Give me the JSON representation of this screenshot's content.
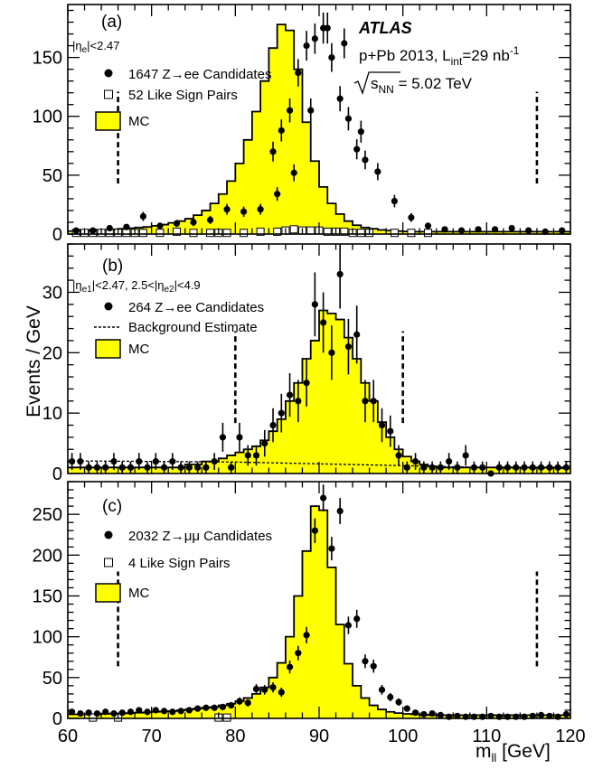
{
  "chart_data": [
    {
      "type": "bar",
      "panel_tag": "(a)",
      "selection": "|η_e|<2.47",
      "ylim": [
        0,
        195
      ],
      "yticks": [
        0,
        50,
        100,
        150
      ],
      "cut_lines": [
        66,
        116
      ],
      "experiment": "ATLAS",
      "run_info": "p+Pb 2013, L_int=29 nb⁻¹",
      "energy": "√s_NN = 5.02 TeV",
      "legend": [
        "1647 Z→ee Candidates",
        "52 Like Sign Pairs",
        "MC"
      ],
      "mc": [
        2.5,
        2.5,
        3,
        3,
        3.5,
        4,
        4.5,
        5,
        5.5,
        6,
        7,
        8,
        9.5,
        11,
        13,
        16,
        20,
        26,
        34,
        45,
        60,
        80,
        104,
        130,
        158,
        178,
        173,
        140,
        95,
        62,
        40,
        26,
        17,
        11,
        7.5,
        5.5,
        4.5,
        3.5,
        3,
        2.5,
        2.2,
        2,
        2,
        2,
        2,
        2,
        2,
        2,
        2,
        2,
        2,
        2,
        2,
        2,
        2,
        2,
        2,
        2,
        2,
        2
      ],
      "data": {
        "x": [
          61,
          63,
          65,
          67,
          69,
          71,
          73,
          75,
          77,
          79,
          81,
          83,
          85,
          87,
          89,
          91,
          93,
          95,
          97,
          99,
          101,
          103,
          105,
          107,
          109,
          111,
          113,
          115,
          117,
          119
        ],
        "y": [
          3,
          3,
          5,
          6,
          15,
          7,
          9,
          10,
          12,
          21,
          19,
          21,
          34,
          52,
          105,
          175,
          162,
          87,
          53,
          28,
          14,
          7,
          4,
          3,
          4,
          4,
          5,
          3,
          2,
          3
        ],
        "err": [
          1.7,
          1.7,
          2.2,
          2.4,
          3.9,
          2.6,
          3,
          3.2,
          3.5,
          4.6,
          4.4,
          4.6,
          5.8,
          7.2,
          10.2,
          13.2,
          12.7,
          9.3,
          7.3,
          5.3,
          3.7,
          2.6,
          2,
          1.7,
          2,
          2,
          2.2,
          1.7,
          1.4,
          1.7
        ]
      },
      "data_fine": {
        "x": [
          84.5,
          85.5,
          86.5,
          87.5,
          88.5,
          89.5,
          90.5,
          91.5,
          92.5,
          93.5,
          94.5,
          95.5
        ],
        "y": [
          70,
          88,
          105,
          137,
          160,
          166,
          175,
          150,
          115,
          98,
          72,
          63
        ],
        "err": [
          8.4,
          9.4,
          10.2,
          11.7,
          12.6,
          12.9,
          13.2,
          12.2,
          10.7,
          9.9,
          8.5,
          7.9
        ]
      },
      "like_sign": {
        "x": [
          61,
          62,
          63,
          64,
          65,
          66,
          67,
          68,
          69,
          71,
          73,
          75,
          77,
          78,
          79,
          81,
          83,
          85,
          86,
          87,
          88,
          89,
          90,
          91,
          92,
          93,
          94,
          95,
          96,
          99,
          101,
          103
        ],
        "y": [
          1,
          1,
          1,
          1,
          1,
          1,
          1,
          1,
          1,
          1,
          2,
          1,
          1,
          1,
          1,
          1,
          2,
          2,
          3,
          4,
          3,
          3,
          3,
          2,
          2,
          2,
          1,
          1,
          1,
          1,
          1,
          1
        ]
      }
    },
    {
      "type": "bar",
      "panel_tag": "(b)",
      "selection": "|η_e1|<2.47, 2.5<|η_e2|<4.9",
      "ylim": [
        0,
        38
      ],
      "yticks": [
        0,
        10,
        20,
        30
      ],
      "cut_lines": [
        80,
        100
      ],
      "legend": [
        "264 Z→ee Candidates",
        "Background Estimate",
        "MC"
      ],
      "mc": [
        1,
        1,
        1,
        1,
        1,
        1,
        1,
        1,
        1,
        1,
        1,
        1,
        1,
        1,
        1.5,
        1.5,
        2,
        2,
        2.5,
        3,
        3.5,
        4,
        4.5,
        5.5,
        7,
        9,
        12,
        15,
        19,
        22,
        27,
        26.5,
        25.5,
        22.5,
        19,
        15,
        12,
        8.5,
        6,
        4,
        2.8,
        2,
        1.5,
        1.2,
        1,
        1,
        1,
        1,
        1,
        1,
        1,
        1,
        1,
        1,
        1,
        1,
        1,
        1,
        1,
        1
      ],
      "background": {
        "x": [
          60,
          70,
          80,
          90,
          100,
          110,
          120
        ],
        "y": [
          2.1,
          2,
          1.9,
          1.6,
          1.3,
          1,
          0.8
        ]
      },
      "data": {
        "x": [
          60.5,
          61.5,
          62.5,
          63.5,
          64.5,
          65.5,
          66.5,
          67.5,
          68.5,
          69.5,
          70.5,
          71.5,
          72.5,
          73.5,
          74.5,
          75.5,
          76.5,
          77.5,
          78.5,
          79.5,
          80.5,
          81.5,
          82.5,
          83.5,
          84.5,
          85.5,
          86.5,
          87.5,
          88.5,
          89.5,
          90.5,
          91.5,
          92.5,
          93.5,
          94.5,
          95.5,
          96.5,
          97.5,
          98.5,
          99.5,
          100.5,
          101.5,
          102.5,
          103.5,
          104.5,
          105.5,
          106.5,
          107.5,
          108.5,
          109.5,
          110.5,
          111.5,
          112.5,
          113.5,
          114.5,
          115.5,
          116.5,
          117.5,
          118.5,
          119.5
        ],
        "y": [
          2,
          2,
          1,
          1,
          1,
          2,
          1,
          1,
          2,
          1,
          2,
          1,
          2,
          1,
          1,
          1,
          1,
          2,
          6,
          1,
          6,
          3,
          3,
          5,
          8,
          10,
          13,
          12,
          15,
          28,
          25,
          20,
          33,
          21,
          23,
          12,
          12,
          8,
          7,
          3,
          1,
          2,
          1,
          1,
          1,
          2,
          1,
          3,
          1,
          1,
          0,
          1,
          1,
          1,
          1,
          1,
          1,
          1,
          1,
          1
        ],
        "err": [
          1.4,
          1.4,
          1,
          1,
          1,
          1.4,
          1,
          1,
          1.4,
          1,
          1.4,
          1,
          1.4,
          1,
          1,
          1,
          1,
          1.4,
          2.4,
          1,
          2.4,
          1.7,
          1.7,
          2.2,
          2.8,
          3.2,
          3.6,
          3.5,
          3.9,
          5.3,
          5,
          4.5,
          5.7,
          4.6,
          4.8,
          3.5,
          3.5,
          2.8,
          2.6,
          1.7,
          1,
          1.4,
          1,
          1,
          1,
          1.4,
          1,
          1.7,
          1,
          1,
          0,
          1,
          1,
          1,
          1,
          1,
          1,
          1,
          1,
          1
        ]
      }
    },
    {
      "type": "bar",
      "panel_tag": "(c)",
      "selection": "",
      "ylim": [
        0,
        290
      ],
      "yticks": [
        0,
        50,
        100,
        150,
        200,
        250
      ],
      "cut_lines": [
        66,
        116
      ],
      "legend": [
        "2032 Z→μμ Candidates",
        "4 Like Sign Pairs",
        "MC"
      ],
      "mc": [
        5,
        5,
        5,
        5,
        5.5,
        6,
        6,
        6.5,
        7,
        7.5,
        8,
        8.5,
        9,
        10,
        11,
        12,
        13,
        14,
        16,
        18,
        21,
        25,
        30,
        38,
        50,
        68,
        100,
        150,
        205,
        260,
        255,
        185,
        115,
        67,
        40,
        25,
        16,
        11,
        8,
        6.5,
        5.5,
        5,
        4.5,
        4,
        4,
        4,
        4,
        4,
        4,
        4,
        4,
        4,
        4,
        4,
        4,
        4,
        4,
        4,
        4,
        4
      ],
      "data": {
        "x": [
          60.5,
          61.5,
          62.5,
          63.5,
          64.5,
          65.5,
          66.5,
          67.5,
          68.5,
          69.5,
          70.5,
          71.5,
          72.5,
          73.5,
          74.5,
          75.5,
          76.5,
          77.5,
          78.5,
          79.5,
          80.5,
          81.5,
          82.5,
          83.5,
          84.5,
          85.5,
          86.5,
          87.5,
          88.5,
          89.5,
          90.5,
          91.5,
          92.5,
          93.5,
          94.5,
          95.5,
          96.5,
          97.5,
          98.5,
          99.5,
          100.5,
          101.5,
          102.5,
          103.5,
          104.5,
          105.5,
          106.5,
          107.5,
          108.5,
          109.5,
          110.5,
          111.5,
          112.5,
          113.5,
          114.5,
          115.5,
          116.5,
          117.5,
          118.5,
          119.5
        ],
        "y": [
          8,
          6,
          7,
          6,
          8,
          6,
          7,
          8,
          10,
          8,
          10,
          9,
          8,
          9,
          10,
          12,
          13,
          13,
          14,
          16,
          21,
          19,
          36,
          35,
          38,
          32,
          63,
          80,
          102,
          230,
          270,
          208,
          254,
          114,
          122,
          70,
          64,
          35,
          26,
          20,
          12,
          7,
          5,
          6,
          4,
          2,
          3,
          2,
          2,
          2,
          3,
          2,
          2,
          2,
          2,
          3,
          4,
          3,
          2,
          5
        ],
        "err": [
          2.8,
          2.4,
          2.6,
          2.4,
          2.8,
          2.4,
          2.6,
          2.8,
          3.2,
          2.8,
          3.2,
          3,
          2.8,
          3,
          3.2,
          3.5,
          3.6,
          3.6,
          3.7,
          4,
          4.6,
          4.4,
          6,
          5.9,
          6.2,
          5.7,
          7.9,
          8.9,
          10.1,
          15.2,
          16.4,
          14.4,
          15.9,
          10.7,
          11,
          8.4,
          8,
          5.9,
          5.1,
          4.5,
          3.5,
          2.6,
          2.2,
          2.4,
          2,
          1.4,
          1.7,
          1.4,
          1.4,
          1.4,
          1.7,
          1.4,
          1.4,
          1.4,
          1.4,
          1.7,
          2,
          1.7,
          1.4,
          2.2
        ]
      },
      "like_sign": {
        "x": [
          63,
          66,
          78,
          79
        ],
        "y": [
          1,
          1,
          1,
          1
        ]
      }
    }
  ],
  "x_axis": {
    "range": [
      60,
      120
    ],
    "ticks": [
      60,
      70,
      80,
      90,
      100,
      110,
      120
    ],
    "label": "m_ll [GeV]"
  },
  "y_axis_label": "Events / GeV",
  "colors": {
    "mc_fill": "#ffff00",
    "ink": "#000000"
  }
}
